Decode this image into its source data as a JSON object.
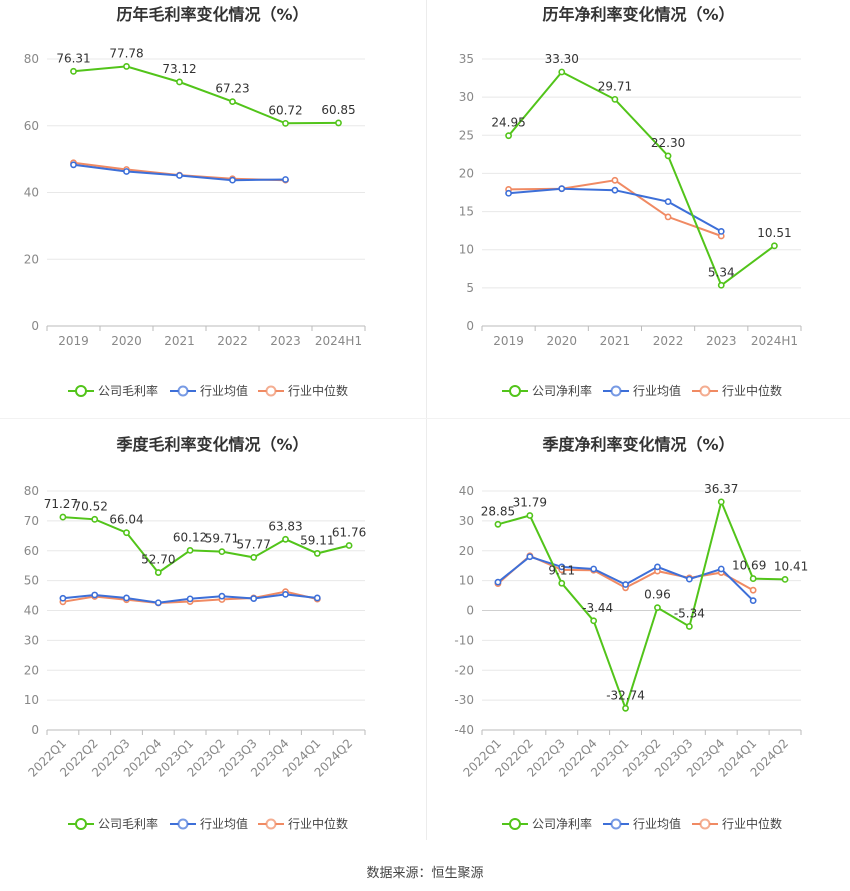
{
  "footer": {
    "source": "数据来源：恒生聚源"
  },
  "colors": {
    "company": "#52c41a",
    "avg": "#3d6fd8",
    "median": "#f08a63",
    "grid": "#e8e8e8",
    "axis": "#888888"
  },
  "chart_data": [
    {
      "type": "line",
      "title": "历年毛利率变化情况（%）",
      "categories": [
        "2019",
        "2020",
        "2021",
        "2022",
        "2023",
        "2024H1"
      ],
      "ylim": [
        0,
        80
      ],
      "yticks": [
        0,
        20,
        40,
        60,
        80
      ],
      "grid": true,
      "legend_position": "bottom",
      "series": [
        {
          "name": "公司毛利率",
          "values": [
            76.31,
            77.78,
            73.12,
            67.23,
            60.72,
            60.85
          ],
          "labels": [
            "76.31",
            "77.78",
            "73.12",
            "67.23",
            "60.72",
            "60.85"
          ]
        },
        {
          "name": "行业均值",
          "values": [
            48.3,
            46.3,
            45.1,
            43.7,
            43.9,
            null
          ]
        },
        {
          "name": "行业中位数",
          "values": [
            48.9,
            46.9,
            45.2,
            44.1,
            43.7,
            null
          ]
        }
      ]
    },
    {
      "type": "line",
      "title": "历年净利率变化情况（%）",
      "categories": [
        "2019",
        "2020",
        "2021",
        "2022",
        "2023",
        "2024H1"
      ],
      "ylim": [
        0,
        35
      ],
      "yticks": [
        0,
        5,
        10,
        15,
        20,
        25,
        30,
        35
      ],
      "grid": true,
      "legend_position": "bottom",
      "series": [
        {
          "name": "公司净利率",
          "values": [
            24.95,
            33.3,
            29.71,
            22.3,
            5.34,
            10.51
          ],
          "labels": [
            "24.95",
            "33.30",
            "29.71",
            "22.30",
            "5.34",
            "10.51"
          ]
        },
        {
          "name": "行业均值",
          "values": [
            17.4,
            18.0,
            17.8,
            16.3,
            12.4,
            null
          ]
        },
        {
          "name": "行业中位数",
          "values": [
            17.9,
            18.0,
            19.1,
            14.3,
            11.8,
            null
          ]
        }
      ]
    },
    {
      "type": "line",
      "title": "季度毛利率变化情况（%）",
      "categories": [
        "2022Q1",
        "2022Q2",
        "2022Q3",
        "2022Q4",
        "2023Q1",
        "2023Q2",
        "2023Q3",
        "2023Q4",
        "2024Q1",
        "2024Q2"
      ],
      "ylim": [
        0,
        80
      ],
      "yticks": [
        0,
        10,
        20,
        30,
        40,
        50,
        60,
        70,
        80
      ],
      "grid": true,
      "legend_position": "bottom",
      "series": [
        {
          "name": "公司毛利率",
          "values": [
            71.27,
            70.52,
            66.04,
            52.7,
            60.12,
            59.71,
            57.77,
            63.83,
            59.11,
            61.76
          ],
          "labels": [
            "71.27",
            "70.52",
            "66.04",
            "52.70",
            "60.12",
            "59.71",
            "57.77",
            "63.83",
            "59.11",
            "61.76"
          ]
        },
        {
          "name": "行业均值",
          "values": [
            44.1,
            45.2,
            44.2,
            42.6,
            43.9,
            44.8,
            44.0,
            45.4,
            44.2,
            null
          ]
        },
        {
          "name": "行业中位数",
          "values": [
            42.9,
            44.7,
            43.6,
            42.5,
            43.0,
            43.7,
            44.2,
            46.3,
            43.8,
            null
          ]
        }
      ]
    },
    {
      "type": "line",
      "title": "季度净利率变化情况（%）",
      "categories": [
        "2022Q1",
        "2022Q2",
        "2022Q3",
        "2022Q4",
        "2023Q1",
        "2023Q2",
        "2023Q3",
        "2023Q4",
        "2024Q1",
        "2024Q2"
      ],
      "ylim": [
        -40,
        40
      ],
      "yticks": [
        -40,
        -30,
        -20,
        -10,
        0,
        10,
        20,
        30,
        40
      ],
      "grid": true,
      "legend_position": "bottom",
      "series": [
        {
          "name": "公司净利率",
          "values": [
            28.85,
            31.79,
            9.11,
            -3.44,
            -32.74,
            0.96,
            -5.34,
            36.37,
            10.69,
            10.41
          ],
          "labels": [
            "28.85",
            "31.79",
            "9.11",
            "-3.44",
            "-32.74",
            "0.96",
            "-5.34",
            "36.37",
            "10.69",
            "10.41"
          ]
        },
        {
          "name": "行业均值",
          "values": [
            9.5,
            18.0,
            14.6,
            13.9,
            8.7,
            14.6,
            10.5,
            13.9,
            3.3,
            null
          ]
        },
        {
          "name": "行业中位数",
          "values": [
            9.0,
            18.3,
            13.6,
            13.5,
            7.6,
            13.2,
            10.9,
            12.7,
            6.8,
            null
          ]
        }
      ]
    }
  ]
}
